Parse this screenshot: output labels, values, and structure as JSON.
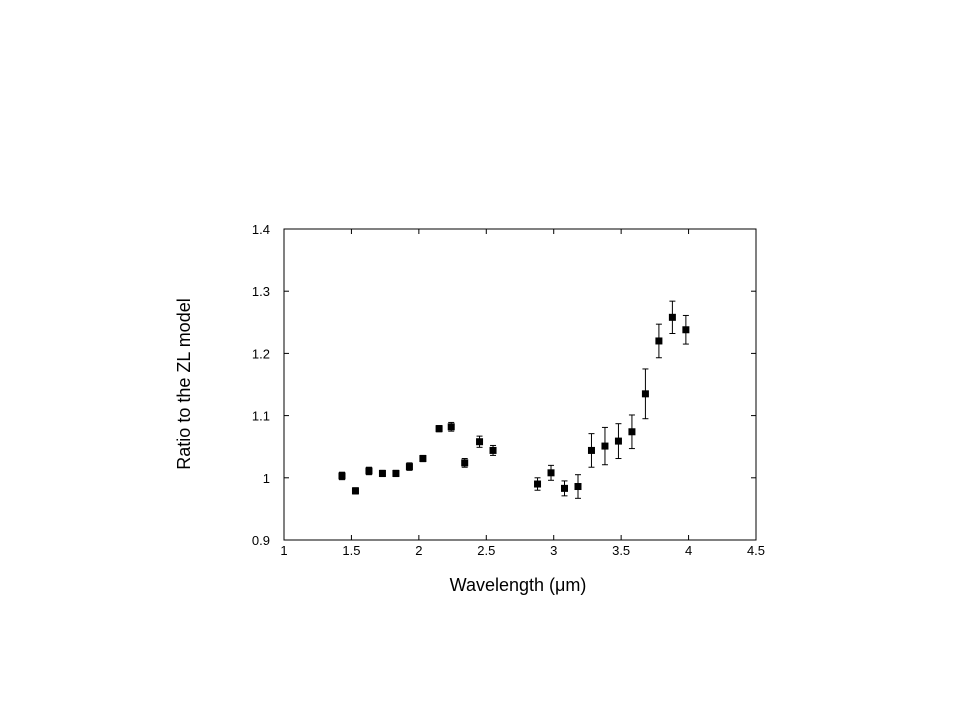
{
  "chart_data": {
    "type": "scatter",
    "title": "",
    "xlabel": "Wavelength (μm)",
    "ylabel": "Ratio to the  ZL model",
    "xlim": [
      1,
      4.5
    ],
    "ylim": [
      0.9,
      1.4
    ],
    "xticks": [
      "1",
      "1.5",
      "2",
      "2.5",
      "3",
      "3.5",
      "4",
      "4.5"
    ],
    "yticks": [
      "0.9",
      "1",
      "1.1",
      "1.2",
      "1.3",
      "1.4"
    ],
    "grid": false,
    "marker": "square",
    "color": "#000000",
    "points": [
      {
        "x": 1.43,
        "y": 1.003,
        "err": 0.006
      },
      {
        "x": 1.53,
        "y": 0.979,
        "err": 0.005
      },
      {
        "x": 1.63,
        "y": 1.011,
        "err": 0.006
      },
      {
        "x": 1.73,
        "y": 1.007,
        "err": 0.005
      },
      {
        "x": 1.83,
        "y": 1.007,
        "err": 0.005
      },
      {
        "x": 1.93,
        "y": 1.018,
        "err": 0.006
      },
      {
        "x": 2.03,
        "y": 1.031,
        "err": 0.005
      },
      {
        "x": 2.15,
        "y": 1.079,
        "err": 0.005
      },
      {
        "x": 2.24,
        "y": 1.082,
        "err": 0.007
      },
      {
        "x": 2.34,
        "y": 1.024,
        "err": 0.007
      },
      {
        "x": 2.45,
        "y": 1.058,
        "err": 0.009
      },
      {
        "x": 2.55,
        "y": 1.044,
        "err": 0.008
      },
      {
        "x": 2.88,
        "y": 0.99,
        "err": 0.01
      },
      {
        "x": 2.98,
        "y": 1.008,
        "err": 0.012
      },
      {
        "x": 3.08,
        "y": 0.983,
        "err": 0.012
      },
      {
        "x": 3.18,
        "y": 0.986,
        "err": 0.019
      },
      {
        "x": 3.28,
        "y": 1.044,
        "err": 0.027
      },
      {
        "x": 3.38,
        "y": 1.051,
        "err": 0.03
      },
      {
        "x": 3.48,
        "y": 1.059,
        "err": 0.028
      },
      {
        "x": 3.58,
        "y": 1.074,
        "err": 0.027
      },
      {
        "x": 3.68,
        "y": 1.135,
        "err": 0.04
      },
      {
        "x": 3.78,
        "y": 1.22,
        "err": 0.027
      },
      {
        "x": 3.88,
        "y": 1.258,
        "err": 0.026
      },
      {
        "x": 3.98,
        "y": 1.238,
        "err": 0.023
      }
    ]
  }
}
